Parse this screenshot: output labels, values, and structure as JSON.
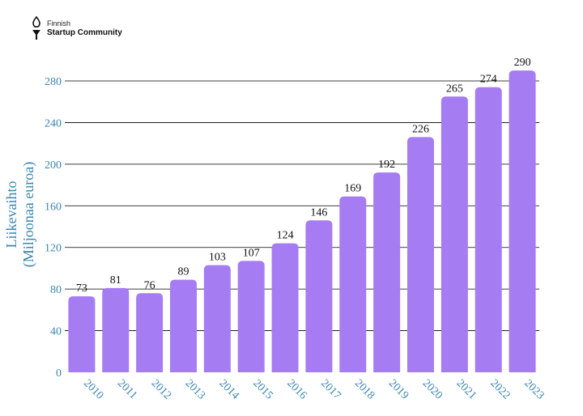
{
  "logo": {
    "line1": "Finnish",
    "line2": "Startup Community",
    "icon": "torch-icon"
  },
  "colors": {
    "bar": "#a57cf2",
    "axis_text": "#3a86b0",
    "grid": "#000000",
    "label": "#111111"
  },
  "chart_data": {
    "type": "bar",
    "categories": [
      "2010",
      "2011",
      "2012",
      "2013",
      "2014",
      "2015",
      "2016",
      "2017",
      "2018",
      "2019",
      "2020",
      "2021",
      "2022",
      "2023"
    ],
    "values": [
      73,
      81,
      76,
      89,
      103,
      107,
      124,
      146,
      169,
      192,
      226,
      265,
      274,
      290
    ],
    "title": "",
    "xlabel": "",
    "ylabel": [
      "Liikevaihto",
      "(Miljoonaa euroa)"
    ],
    "ylim": [
      0,
      290
    ],
    "yticks": [
      0,
      40,
      80,
      120,
      160,
      200,
      240,
      280
    ],
    "grid": true,
    "data_labels": true,
    "x_tick_rotation": "diagonal"
  }
}
